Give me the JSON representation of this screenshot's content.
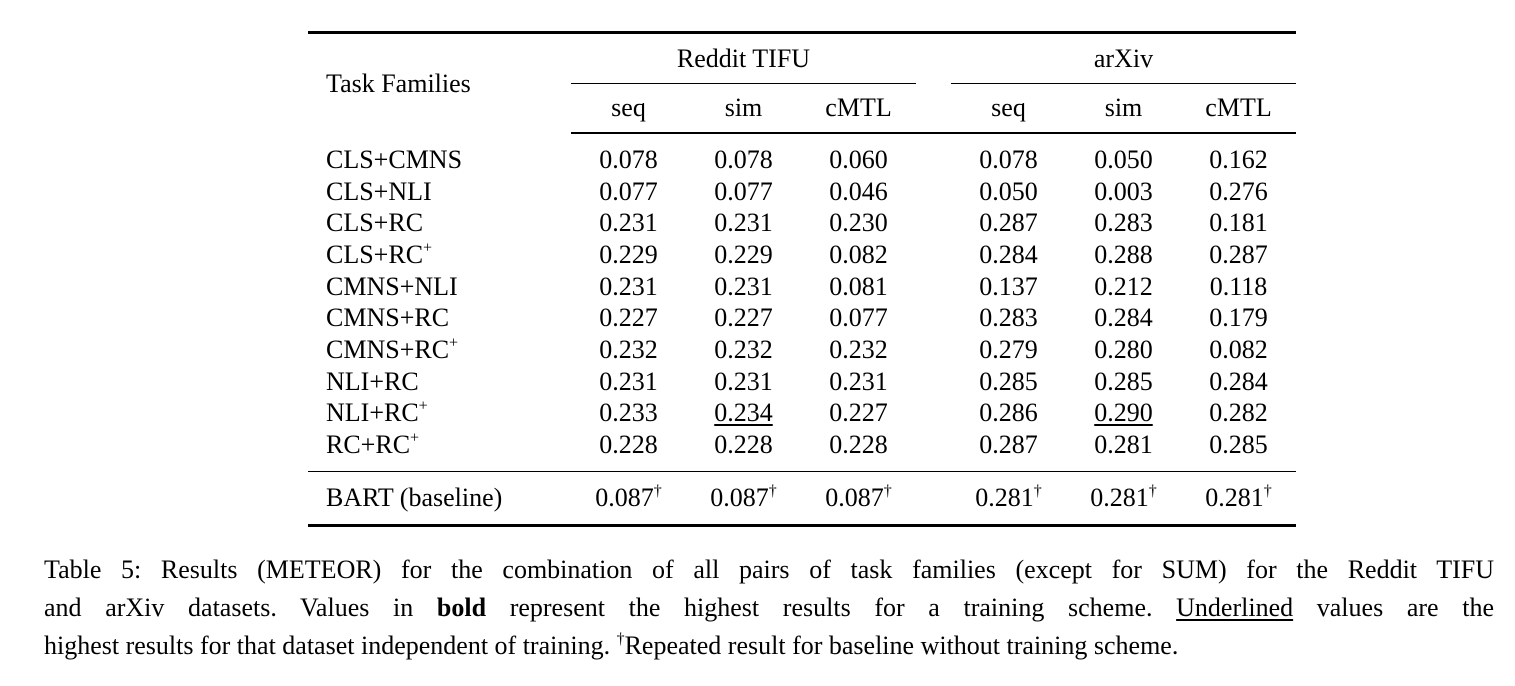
{
  "table": {
    "task_header": "Task Families",
    "groups": [
      {
        "name": "Reddit TIFU",
        "columns": [
          "seq",
          "sim",
          "cMTL"
        ]
      },
      {
        "name": "arXiv",
        "columns": [
          "seq",
          "sim",
          "cMTL"
        ]
      }
    ],
    "rows": [
      {
        "task": "CLS+CMNS",
        "sup": "",
        "values": [
          "0.078",
          "0.078",
          "0.060",
          "0.078",
          "0.050",
          "0.162"
        ],
        "bold": [],
        "underline": []
      },
      {
        "task": "CLS+NLI",
        "sup": "",
        "values": [
          "0.077",
          "0.077",
          "0.046",
          "0.050",
          "0.003",
          "0.276"
        ],
        "bold": [],
        "underline": []
      },
      {
        "task": "CLS+RC",
        "sup": "",
        "values": [
          "0.231",
          "0.231",
          "0.230",
          "0.287",
          "0.283",
          "0.181"
        ],
        "bold": [
          3
        ],
        "underline": []
      },
      {
        "task": "CLS+RC",
        "sup": "+",
        "values": [
          "0.229",
          "0.229",
          "0.082",
          "0.284",
          "0.288",
          "0.287"
        ],
        "bold": [
          5
        ],
        "underline": []
      },
      {
        "task": "CMNS+NLI",
        "sup": "",
        "values": [
          "0.231",
          "0.231",
          "0.081",
          "0.137",
          "0.212",
          "0.118"
        ],
        "bold": [],
        "underline": []
      },
      {
        "task": "CMNS+RC",
        "sup": "",
        "values": [
          "0.227",
          "0.227",
          "0.077",
          "0.283",
          "0.284",
          "0.179"
        ],
        "bold": [],
        "underline": []
      },
      {
        "task": "CMNS+RC",
        "sup": "+",
        "values": [
          "0.232",
          "0.232",
          "0.232",
          "0.279",
          "0.280",
          "0.082"
        ],
        "bold": [
          2
        ],
        "underline": []
      },
      {
        "task": "NLI+RC",
        "sup": "",
        "values": [
          "0.231",
          "0.231",
          "0.231",
          "0.285",
          "0.285",
          "0.284"
        ],
        "bold": [],
        "underline": []
      },
      {
        "task": "NLI+RC",
        "sup": "+",
        "values": [
          "0.233",
          "0.234",
          "0.227",
          "0.286",
          "0.290",
          "0.282"
        ],
        "bold": [
          0,
          1,
          4
        ],
        "underline": [
          1,
          4
        ]
      },
      {
        "task": "RC+RC",
        "sup": "+",
        "values": [
          "0.228",
          "0.228",
          "0.228",
          "0.287",
          "0.281",
          "0.285"
        ],
        "bold": [
          3
        ],
        "underline": []
      }
    ],
    "baseline": {
      "task": "BART (baseline)",
      "values": [
        "0.087",
        "0.087",
        "0.087",
        "0.281",
        "0.281",
        "0.281"
      ],
      "mark": "†"
    }
  },
  "caption": {
    "line1": "Table 5: Results (METEOR) for the combination of all pairs of task families (except for SUM) for the Reddit TIFU",
    "line2_pre": "and arXiv datasets. Values in ",
    "line2_bold": "bold",
    "line2_mid": " represent the highest results for a training scheme. ",
    "line2_underline": "Underlined",
    "line2_post": " values are the",
    "line3_pre": "highest results for that dataset independent of training. ",
    "line3_mark": "†",
    "line3_post": "Repeated result for baseline without training scheme."
  }
}
